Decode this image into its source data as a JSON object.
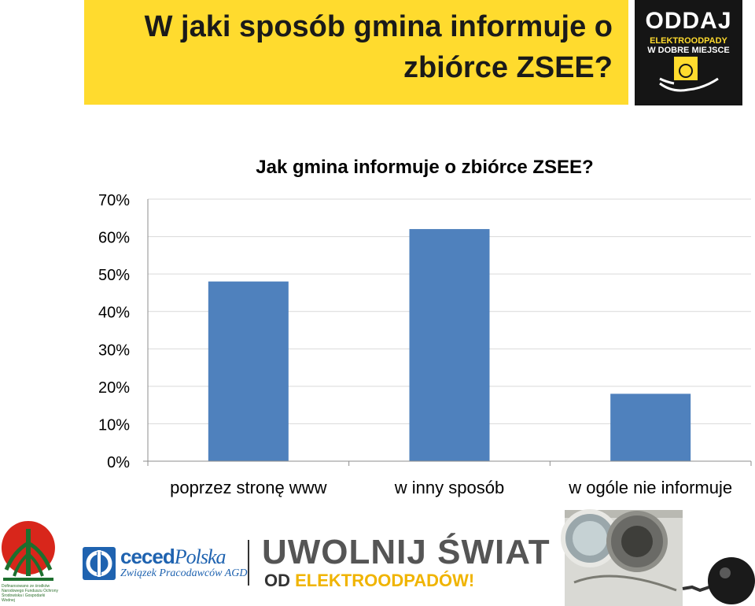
{
  "header": {
    "title_line1": "W jaki sposób gmina informuje o",
    "title_line2": "zbiórce ZSEE?",
    "banner_color": "#FFDB2E"
  },
  "logo_top": {
    "line1": "ODDAJ",
    "line2": "ELEKTROODPADY",
    "line3": "W DOBRE MIEJSCE"
  },
  "chart_data": {
    "type": "bar",
    "title": "Jak gmina informuje o zbiórce ZSEE?",
    "categories": [
      "poprzez stronę www",
      "w inny sposób",
      "w ogóle nie informuje"
    ],
    "values": [
      48,
      62,
      18
    ],
    "unit": "%",
    "ylim": [
      0,
      70
    ],
    "yticks": [
      "0%",
      "10%",
      "20%",
      "30%",
      "40%",
      "50%",
      "60%",
      "70%"
    ],
    "gridlines": true,
    "bar_color": "#4F81BD",
    "xlabel": "",
    "ylabel": ""
  },
  "footer": {
    "nfos_text": "Dofinansowano ze środków Narodowego Funduszu Ochrony Środowiska i Gospodarki Wodnej",
    "ceced_name": "ceced",
    "ceced_country": "Polska",
    "ceced_sub": "Związek Pracodawców AGD",
    "campaign_main": "UWOLNIJ ŚWIAT",
    "campaign_od": "OD",
    "campaign_el": "ELEKTROODPADÓW!"
  }
}
